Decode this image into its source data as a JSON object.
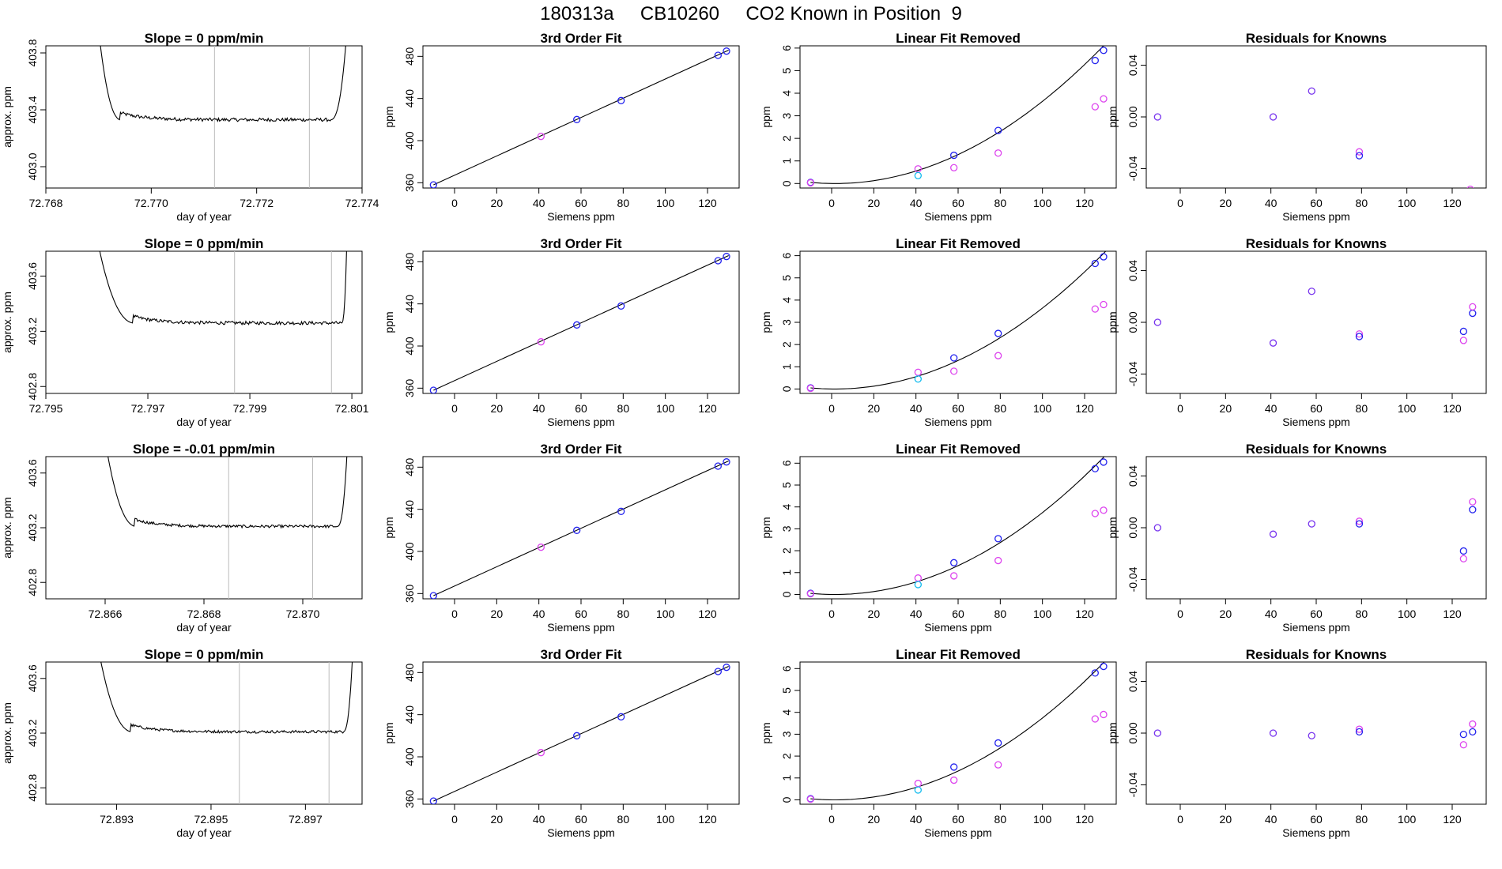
{
  "title": "180313a     CB10260     CO2 Known in Position  9",
  "colors": {
    "line": "#000000",
    "vline": "#bbbbbb",
    "blue": "#2222ee",
    "magenta": "#dd44ee",
    "cyan": "#11bbee",
    "purple": "#7733ee",
    "red": "#ee3333",
    "axis": "#000000"
  },
  "chart_data": [
    {
      "type": "line",
      "panel": "time",
      "title": "Slope =  0  ppm/min",
      "xlabel": "day of year",
      "ylabel": "approx. ppm",
      "xlim": [
        72.768,
        72.774
      ],
      "ylim": [
        402.85,
        403.85
      ],
      "xticks": [
        72.768,
        72.77,
        72.772,
        72.774
      ],
      "xtick_labels": [
        "72.768",
        "72.770",
        "72.772",
        "72.774"
      ],
      "yticks": [
        403.0,
        403.4,
        403.8
      ],
      "ytick_labels": [
        "403.0",
        "403.4",
        "403.8"
      ],
      "vlines": [
        72.7712,
        72.773
      ],
      "trace": {
        "start": 72.769,
        "end": 72.7737,
        "rise_end": 72.7694,
        "fall_start": 72.7734,
        "level": 403.33,
        "noise": 0.012,
        "top": 403.9
      }
    },
    {
      "type": "line",
      "panel": "fit",
      "title": "3rd Order Fit",
      "xlabel": "Siemens ppm",
      "ylabel": "ppm",
      "xlim": [
        -15,
        135
      ],
      "ylim": [
        355,
        490
      ],
      "xticks": [
        0,
        20,
        40,
        60,
        80,
        100,
        120
      ],
      "yticks": [
        360,
        400,
        440,
        480
      ],
      "line_x": [
        -10,
        130
      ],
      "points": [
        {
          "x": -10,
          "y": 358,
          "c": "blue"
        },
        {
          "x": 41,
          "y": 404,
          "c": "magenta"
        },
        {
          "x": 58,
          "y": 420,
          "c": "blue"
        },
        {
          "x": 79,
          "y": 438,
          "c": "blue"
        },
        {
          "x": 125,
          "y": 481,
          "c": "blue"
        },
        {
          "x": 129,
          "y": 485,
          "c": "blue"
        }
      ]
    },
    {
      "type": "scatter",
      "panel": "linfit",
      "title": "Linear Fit Removed",
      "xlabel": "Siemens ppm",
      "ylabel": "ppm",
      "xlim": [
        -15,
        135
      ],
      "ylim": [
        -0.2,
        6.1
      ],
      "xticks": [
        0,
        20,
        40,
        60,
        80,
        100,
        120
      ],
      "yticks": [
        0,
        1,
        2,
        3,
        4,
        5,
        6
      ],
      "curve": {
        "a": 0.000376,
        "b": -0.0012,
        "from": -10,
        "to": 130
      },
      "points": [
        {
          "x": -10,
          "y": 0.05,
          "c": "blue"
        },
        {
          "x": -10,
          "y": 0.03,
          "c": "magenta"
        },
        {
          "x": 41,
          "y": 0.65,
          "c": "magenta"
        },
        {
          "x": 41,
          "y": 0.35,
          "c": "cyan"
        },
        {
          "x": 58,
          "y": 1.25,
          "c": "blue"
        },
        {
          "x": 58,
          "y": 0.7,
          "c": "magenta"
        },
        {
          "x": 79,
          "y": 2.35,
          "c": "blue"
        },
        {
          "x": 79,
          "y": 1.35,
          "c": "magenta"
        },
        {
          "x": 125,
          "y": 5.45,
          "c": "blue"
        },
        {
          "x": 125,
          "y": 3.4,
          "c": "magenta"
        },
        {
          "x": 129,
          "y": 5.9,
          "c": "blue"
        },
        {
          "x": 129,
          "y": 3.75,
          "c": "magenta"
        }
      ]
    },
    {
      "type": "scatter",
      "panel": "resid",
      "title": "Residuals for Knowns",
      "xlabel": "Siemens ppm",
      "ylabel": "ppm",
      "xlim": [
        -15,
        135
      ],
      "ylim": [
        -0.055,
        0.055
      ],
      "xticks": [
        0,
        20,
        40,
        60,
        80,
        100,
        120
      ],
      "yticks": [
        -0.04,
        0.0,
        0.04
      ],
      "ytick_labels": [
        "-0.04",
        "0.00",
        "0.04"
      ],
      "points": [
        {
          "x": -10,
          "y": 0.0,
          "c": "purple"
        },
        {
          "x": 41,
          "y": 0.0,
          "c": "purple"
        },
        {
          "x": 58,
          "y": 0.02,
          "c": "purple"
        },
        {
          "x": 79,
          "y": -0.027,
          "c": "magenta"
        },
        {
          "x": 79,
          "y": -0.03,
          "c": "blue"
        },
        {
          "x": 128,
          "y": -0.056,
          "c": "magenta"
        }
      ]
    },
    {
      "type": "line",
      "panel": "time",
      "title": "Slope =  0  ppm/min",
      "xlabel": "day of year",
      "ylabel": "approx. ppm",
      "xlim": [
        72.795,
        72.8012
      ],
      "ylim": [
        402.75,
        403.78
      ],
      "xticks": [
        72.795,
        72.797,
        72.799,
        72.801
      ],
      "xtick_labels": [
        "72.795",
        "72.797",
        "72.799",
        "72.801"
      ],
      "yticks": [
        402.8,
        403.2,
        403.6
      ],
      "ytick_labels": [
        "402.8",
        "403.2",
        "403.6"
      ],
      "vlines": [
        72.7987,
        72.8006
      ],
      "trace": {
        "start": 72.796,
        "end": 72.8009,
        "rise_end": 72.7967,
        "fall_start": 72.8008,
        "level": 403.26,
        "noise": 0.012,
        "top": 403.82
      }
    },
    {
      "type": "line",
      "panel": "fit",
      "title": "3rd Order Fit",
      "xlabel": "Siemens ppm",
      "ylabel": "ppm",
      "xlim": [
        -15,
        135
      ],
      "ylim": [
        355,
        490
      ],
      "xticks": [
        0,
        20,
        40,
        60,
        80,
        100,
        120
      ],
      "yticks": [
        360,
        400,
        440,
        480
      ],
      "line_x": [
        -10,
        130
      ],
      "points": [
        {
          "x": -10,
          "y": 358,
          "c": "blue"
        },
        {
          "x": 41,
          "y": 404,
          "c": "magenta"
        },
        {
          "x": 58,
          "y": 420,
          "c": "blue"
        },
        {
          "x": 79,
          "y": 438,
          "c": "blue"
        },
        {
          "x": 125,
          "y": 481,
          "c": "blue"
        },
        {
          "x": 129,
          "y": 485,
          "c": "blue"
        }
      ]
    },
    {
      "type": "scatter",
      "panel": "linfit",
      "title": "Linear Fit Removed",
      "xlabel": "Siemens ppm",
      "ylabel": "ppm",
      "xlim": [
        -15,
        135
      ],
      "ylim": [
        -0.2,
        6.2
      ],
      "xticks": [
        0,
        20,
        40,
        60,
        80,
        100,
        120
      ],
      "yticks": [
        0,
        1,
        2,
        3,
        4,
        5,
        6
      ],
      "curve": {
        "a": 0.000376,
        "b": -0.0012,
        "from": -10,
        "to": 130
      },
      "points": [
        {
          "x": -10,
          "y": 0.05,
          "c": "blue"
        },
        {
          "x": -10,
          "y": 0.03,
          "c": "magenta"
        },
        {
          "x": 41,
          "y": 0.75,
          "c": "magenta"
        },
        {
          "x": 41,
          "y": 0.45,
          "c": "cyan"
        },
        {
          "x": 58,
          "y": 1.4,
          "c": "blue"
        },
        {
          "x": 58,
          "y": 0.8,
          "c": "magenta"
        },
        {
          "x": 79,
          "y": 2.5,
          "c": "blue"
        },
        {
          "x": 79,
          "y": 1.5,
          "c": "magenta"
        },
        {
          "x": 125,
          "y": 5.65,
          "c": "blue"
        },
        {
          "x": 125,
          "y": 3.6,
          "c": "magenta"
        },
        {
          "x": 129,
          "y": 5.95,
          "c": "blue"
        },
        {
          "x": 129,
          "y": 3.8,
          "c": "magenta"
        }
      ]
    },
    {
      "type": "scatter",
      "panel": "resid",
      "title": "Residuals for Knowns",
      "xlabel": "Siemens ppm",
      "ylabel": "ppm",
      "xlim": [
        -15,
        135
      ],
      "ylim": [
        -0.055,
        0.055
      ],
      "xticks": [
        0,
        20,
        40,
        60,
        80,
        100,
        120
      ],
      "yticks": [
        -0.04,
        0.0,
        0.04
      ],
      "ytick_labels": [
        "-0.04",
        "0.00",
        "0.04"
      ],
      "points": [
        {
          "x": -10,
          "y": 0.0,
          "c": "purple"
        },
        {
          "x": 41,
          "y": -0.016,
          "c": "purple"
        },
        {
          "x": 58,
          "y": 0.024,
          "c": "purple"
        },
        {
          "x": 79,
          "y": -0.009,
          "c": "magenta"
        },
        {
          "x": 79,
          "y": -0.011,
          "c": "blue"
        },
        {
          "x": 125,
          "y": -0.007,
          "c": "blue"
        },
        {
          "x": 125,
          "y": -0.014,
          "c": "magenta"
        },
        {
          "x": 129,
          "y": 0.007,
          "c": "blue"
        },
        {
          "x": 129,
          "y": 0.012,
          "c": "magenta"
        }
      ]
    },
    {
      "type": "line",
      "panel": "time",
      "title": "Slope =  -0.01  ppm/min",
      "xlabel": "day of year",
      "ylabel": "approx. ppm",
      "xlim": [
        72.8648,
        72.8712
      ],
      "ylim": [
        402.68,
        403.72
      ],
      "xticks": [
        72.866,
        72.868,
        72.87
      ],
      "xtick_labels": [
        "72.866",
        "72.868",
        "72.870"
      ],
      "yticks": [
        402.8,
        403.2,
        403.6
      ],
      "ytick_labels": [
        "402.8",
        "403.2",
        "403.6"
      ],
      "vlines": [
        72.8685,
        72.8702
      ],
      "trace": {
        "start": 72.866,
        "end": 72.8709,
        "rise_end": 72.8666,
        "fall_start": 72.8707,
        "level": 403.21,
        "noise": 0.01,
        "top": 403.78
      }
    },
    {
      "type": "line",
      "panel": "fit",
      "title": "3rd Order Fit",
      "xlabel": "Siemens ppm",
      "ylabel": "ppm",
      "xlim": [
        -15,
        135
      ],
      "ylim": [
        355,
        490
      ],
      "xticks": [
        0,
        20,
        40,
        60,
        80,
        100,
        120
      ],
      "yticks": [
        360,
        400,
        440,
        480
      ],
      "line_x": [
        -10,
        130
      ],
      "points": [
        {
          "x": -10,
          "y": 358,
          "c": "blue"
        },
        {
          "x": 41,
          "y": 404,
          "c": "magenta"
        },
        {
          "x": 58,
          "y": 420,
          "c": "blue"
        },
        {
          "x": 79,
          "y": 438,
          "c": "blue"
        },
        {
          "x": 125,
          "y": 481,
          "c": "blue"
        },
        {
          "x": 129,
          "y": 485,
          "c": "blue"
        }
      ]
    },
    {
      "type": "scatter",
      "panel": "linfit",
      "title": "Linear Fit Removed",
      "xlabel": "Siemens ppm",
      "ylabel": "ppm",
      "xlim": [
        -15,
        135
      ],
      "ylim": [
        -0.2,
        6.3
      ],
      "xticks": [
        0,
        20,
        40,
        60,
        80,
        100,
        120
      ],
      "yticks": [
        0,
        1,
        2,
        3,
        4,
        5,
        6
      ],
      "curve": {
        "a": 0.000386,
        "b": -0.0012,
        "from": -10,
        "to": 130
      },
      "points": [
        {
          "x": -10,
          "y": 0.05,
          "c": "blue"
        },
        {
          "x": -10,
          "y": 0.03,
          "c": "magenta"
        },
        {
          "x": 41,
          "y": 0.75,
          "c": "magenta"
        },
        {
          "x": 41,
          "y": 0.45,
          "c": "cyan"
        },
        {
          "x": 58,
          "y": 1.45,
          "c": "blue"
        },
        {
          "x": 58,
          "y": 0.85,
          "c": "magenta"
        },
        {
          "x": 79,
          "y": 2.55,
          "c": "blue"
        },
        {
          "x": 79,
          "y": 1.55,
          "c": "magenta"
        },
        {
          "x": 125,
          "y": 5.75,
          "c": "blue"
        },
        {
          "x": 125,
          "y": 3.7,
          "c": "magenta"
        },
        {
          "x": 129,
          "y": 6.05,
          "c": "blue"
        },
        {
          "x": 129,
          "y": 3.85,
          "c": "magenta"
        }
      ]
    },
    {
      "type": "scatter",
      "panel": "resid",
      "title": "Residuals for Knowns",
      "xlabel": "Siemens ppm",
      "ylabel": "ppm",
      "xlim": [
        -15,
        135
      ],
      "ylim": [
        -0.055,
        0.055
      ],
      "xticks": [
        0,
        20,
        40,
        60,
        80,
        100,
        120
      ],
      "yticks": [
        -0.04,
        0.0,
        0.04
      ],
      "ytick_labels": [
        "-0.04",
        "0.00",
        "0.04"
      ],
      "points": [
        {
          "x": -10,
          "y": 0.0,
          "c": "purple"
        },
        {
          "x": 41,
          "y": -0.005,
          "c": "purple"
        },
        {
          "x": 58,
          "y": 0.003,
          "c": "purple"
        },
        {
          "x": 79,
          "y": 0.005,
          "c": "magenta"
        },
        {
          "x": 79,
          "y": 0.003,
          "c": "blue"
        },
        {
          "x": 125,
          "y": -0.018,
          "c": "blue"
        },
        {
          "x": 125,
          "y": -0.024,
          "c": "magenta"
        },
        {
          "x": 129,
          "y": 0.014,
          "c": "blue"
        },
        {
          "x": 129,
          "y": 0.02,
          "c": "magenta"
        }
      ]
    },
    {
      "type": "line",
      "panel": "time",
      "title": "Slope =  0  ppm/min",
      "xlabel": "day of year",
      "ylabel": "approx. ppm",
      "xlim": [
        72.8915,
        72.8982
      ],
      "ylim": [
        402.68,
        403.72
      ],
      "xticks": [
        72.893,
        72.895,
        72.897
      ],
      "xtick_labels": [
        "72.893",
        "72.895",
        "72.897"
      ],
      "yticks": [
        402.8,
        403.2,
        403.6
      ],
      "ytick_labels": [
        "402.8",
        "403.2",
        "403.6"
      ],
      "vlines": [
        72.8956,
        72.8975
      ],
      "trace": {
        "start": 72.8926,
        "end": 72.898,
        "rise_end": 72.8933,
        "fall_start": 72.8978,
        "level": 403.21,
        "noise": 0.01,
        "top": 403.78
      }
    },
    {
      "type": "line",
      "panel": "fit",
      "title": "3rd Order Fit",
      "xlabel": "Siemens ppm",
      "ylabel": "ppm",
      "xlim": [
        -15,
        135
      ],
      "ylim": [
        355,
        490
      ],
      "xticks": [
        0,
        20,
        40,
        60,
        80,
        100,
        120
      ],
      "yticks": [
        360,
        400,
        440,
        480
      ],
      "line_x": [
        -10,
        130
      ],
      "points": [
        {
          "x": -10,
          "y": 358,
          "c": "blue"
        },
        {
          "x": 41,
          "y": 404,
          "c": "magenta"
        },
        {
          "x": 58,
          "y": 420,
          "c": "blue"
        },
        {
          "x": 79,
          "y": 438,
          "c": "blue"
        },
        {
          "x": 125,
          "y": 481,
          "c": "blue"
        },
        {
          "x": 129,
          "y": 485,
          "c": "blue"
        }
      ]
    },
    {
      "type": "scatter",
      "panel": "linfit",
      "title": "Linear Fit Removed",
      "xlabel": "Siemens ppm",
      "ylabel": "ppm",
      "xlim": [
        -15,
        135
      ],
      "ylim": [
        -0.2,
        6.3
      ],
      "xticks": [
        0,
        20,
        40,
        60,
        80,
        100,
        120
      ],
      "yticks": [
        0,
        1,
        2,
        3,
        4,
        5,
        6
      ],
      "curve": {
        "a": 0.000386,
        "b": -0.0012,
        "from": -10,
        "to": 130
      },
      "points": [
        {
          "x": -10,
          "y": 0.05,
          "c": "blue"
        },
        {
          "x": -10,
          "y": 0.03,
          "c": "magenta"
        },
        {
          "x": 41,
          "y": 0.75,
          "c": "magenta"
        },
        {
          "x": 41,
          "y": 0.45,
          "c": "cyan"
        },
        {
          "x": 58,
          "y": 1.5,
          "c": "blue"
        },
        {
          "x": 58,
          "y": 0.9,
          "c": "magenta"
        },
        {
          "x": 79,
          "y": 2.6,
          "c": "blue"
        },
        {
          "x": 79,
          "y": 1.6,
          "c": "magenta"
        },
        {
          "x": 125,
          "y": 5.8,
          "c": "blue"
        },
        {
          "x": 125,
          "y": 3.7,
          "c": "magenta"
        },
        {
          "x": 129,
          "y": 6.1,
          "c": "blue"
        },
        {
          "x": 129,
          "y": 3.9,
          "c": "magenta"
        }
      ]
    },
    {
      "type": "scatter",
      "panel": "resid",
      "title": "Residuals for Knowns",
      "xlabel": "Siemens ppm",
      "ylabel": "ppm",
      "xlim": [
        -15,
        135
      ],
      "ylim": [
        -0.055,
        0.055
      ],
      "xticks": [
        0,
        20,
        40,
        60,
        80,
        100,
        120
      ],
      "yticks": [
        -0.04,
        0.0,
        0.04
      ],
      "ytick_labels": [
        "-0.04",
        "0.00",
        "0.04"
      ],
      "points": [
        {
          "x": -10,
          "y": 0.0,
          "c": "purple"
        },
        {
          "x": 41,
          "y": 0.0,
          "c": "purple"
        },
        {
          "x": 58,
          "y": -0.002,
          "c": "purple"
        },
        {
          "x": 79,
          "y": 0.003,
          "c": "magenta"
        },
        {
          "x": 79,
          "y": 0.001,
          "c": "blue"
        },
        {
          "x": 125,
          "y": -0.001,
          "c": "blue"
        },
        {
          "x": 125,
          "y": -0.009,
          "c": "magenta"
        },
        {
          "x": 129,
          "y": 0.001,
          "c": "blue"
        },
        {
          "x": 129,
          "y": 0.007,
          "c": "magenta"
        }
      ]
    }
  ]
}
